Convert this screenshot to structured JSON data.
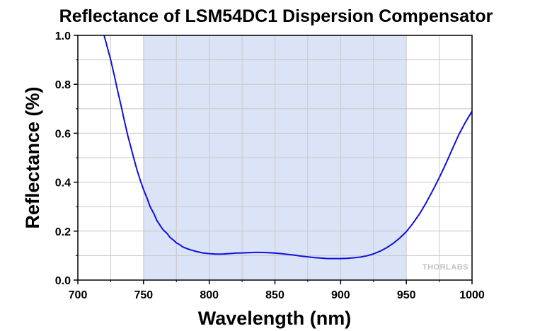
{
  "chart_data": {
    "type": "line",
    "title": "Reflectance of LSM54DC1 Dispersion Compensator",
    "xlabel": "Wavelength (nm)",
    "ylabel": "Reflectance (%)",
    "xlim": [
      700,
      1000
    ],
    "ylim": [
      0.0,
      1.0
    ],
    "xticks": [
      "700",
      "750",
      "800",
      "850",
      "900",
      "950",
      "1000"
    ],
    "yticks": [
      "0.0",
      "0.2",
      "0.4",
      "0.6",
      "0.8",
      "1.0"
    ],
    "grid": true,
    "shaded_band": {
      "x_start": 750,
      "x_end": 950,
      "color": "#dbe3f7"
    },
    "watermark": "THORLABS",
    "series": [
      {
        "color": "#1010dd",
        "x": [
          720,
          722,
          725,
          728,
          730,
          733,
          735,
          738,
          740,
          743,
          745,
          748,
          750,
          753,
          755,
          758,
          760,
          763,
          765,
          768,
          770,
          773,
          775,
          778,
          780,
          785,
          790,
          795,
          800,
          805,
          810,
          815,
          820,
          825,
          830,
          835,
          840,
          845,
          850,
          855,
          860,
          865,
          870,
          875,
          880,
          885,
          890,
          895,
          900,
          905,
          910,
          915,
          920,
          925,
          930,
          935,
          940,
          945,
          950,
          955,
          960,
          965,
          970,
          975,
          980,
          985,
          990,
          995,
          1000
        ],
        "y": [
          1.0,
          0.96,
          0.9,
          0.83,
          0.78,
          0.71,
          0.66,
          0.59,
          0.55,
          0.49,
          0.45,
          0.4,
          0.37,
          0.33,
          0.3,
          0.27,
          0.245,
          0.22,
          0.205,
          0.19,
          0.175,
          0.162,
          0.152,
          0.143,
          0.135,
          0.125,
          0.117,
          0.111,
          0.108,
          0.106,
          0.106,
          0.108,
          0.11,
          0.111,
          0.112,
          0.113,
          0.113,
          0.112,
          0.11,
          0.108,
          0.105,
          0.102,
          0.098,
          0.095,
          0.092,
          0.09,
          0.088,
          0.088,
          0.088,
          0.089,
          0.091,
          0.094,
          0.099,
          0.107,
          0.118,
          0.132,
          0.15,
          0.172,
          0.198,
          0.232,
          0.27,
          0.315,
          0.365,
          0.418,
          0.475,
          0.535,
          0.595,
          0.645,
          0.69
        ]
      }
    ]
  }
}
